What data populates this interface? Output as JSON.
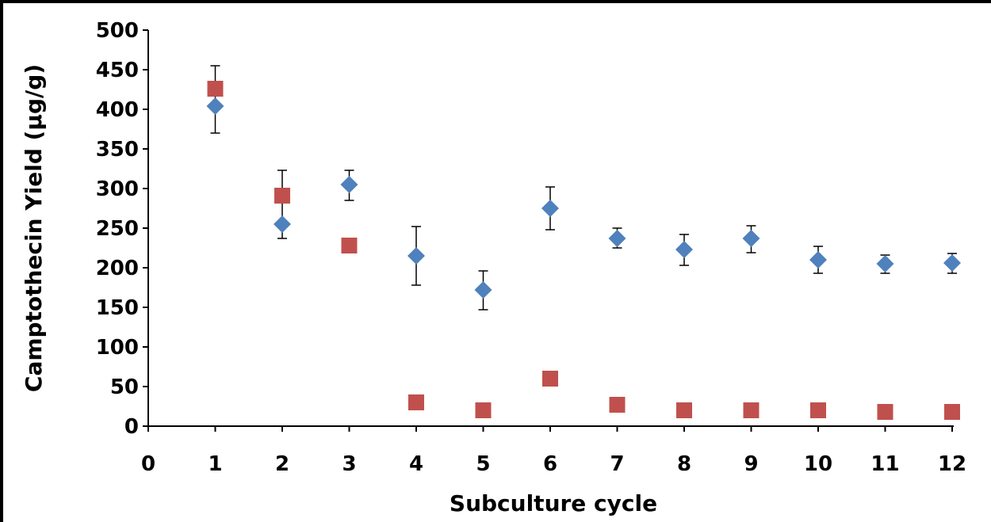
{
  "chart_data": {
    "type": "scatter",
    "xlabel": "Subculture cycle",
    "ylabel": "Camptothecin Yield (µg/g)",
    "xlim": [
      0,
      12
    ],
    "ylim": [
      0,
      500
    ],
    "x_ticks": [
      "0",
      "1",
      "2",
      "3",
      "4",
      "5",
      "6",
      "7",
      "8",
      "9",
      "10",
      "11",
      "12"
    ],
    "y_ticks": [
      "0",
      "50",
      "100",
      "150",
      "200",
      "250",
      "300",
      "350",
      "400",
      "450",
      "500"
    ],
    "grid": false,
    "legend": "none",
    "series": [
      {
        "marker": "diamond",
        "color": "#4F81BD",
        "x": [
          1,
          2,
          3,
          4,
          5,
          6,
          7,
          8,
          9,
          10,
          11,
          12
        ],
        "y": [
          404,
          255,
          305,
          215,
          172,
          275,
          237,
          223,
          237,
          210,
          205,
          206
        ],
        "error_low": [
          370,
          237,
          285,
          178,
          147,
          248,
          225,
          203,
          219,
          193,
          193,
          193
        ],
        "error_high": [
          455,
          323,
          323,
          252,
          196,
          302,
          250,
          242,
          253,
          227,
          216,
          218
        ]
      },
      {
        "marker": "square",
        "color": "#C0504D",
        "x": [
          1,
          2,
          3,
          4,
          5,
          6,
          7,
          8,
          9,
          10,
          11,
          12
        ],
        "y": [
          426,
          291,
          228,
          30,
          20,
          60,
          27,
          20,
          20,
          20,
          18,
          18
        ]
      }
    ]
  }
}
